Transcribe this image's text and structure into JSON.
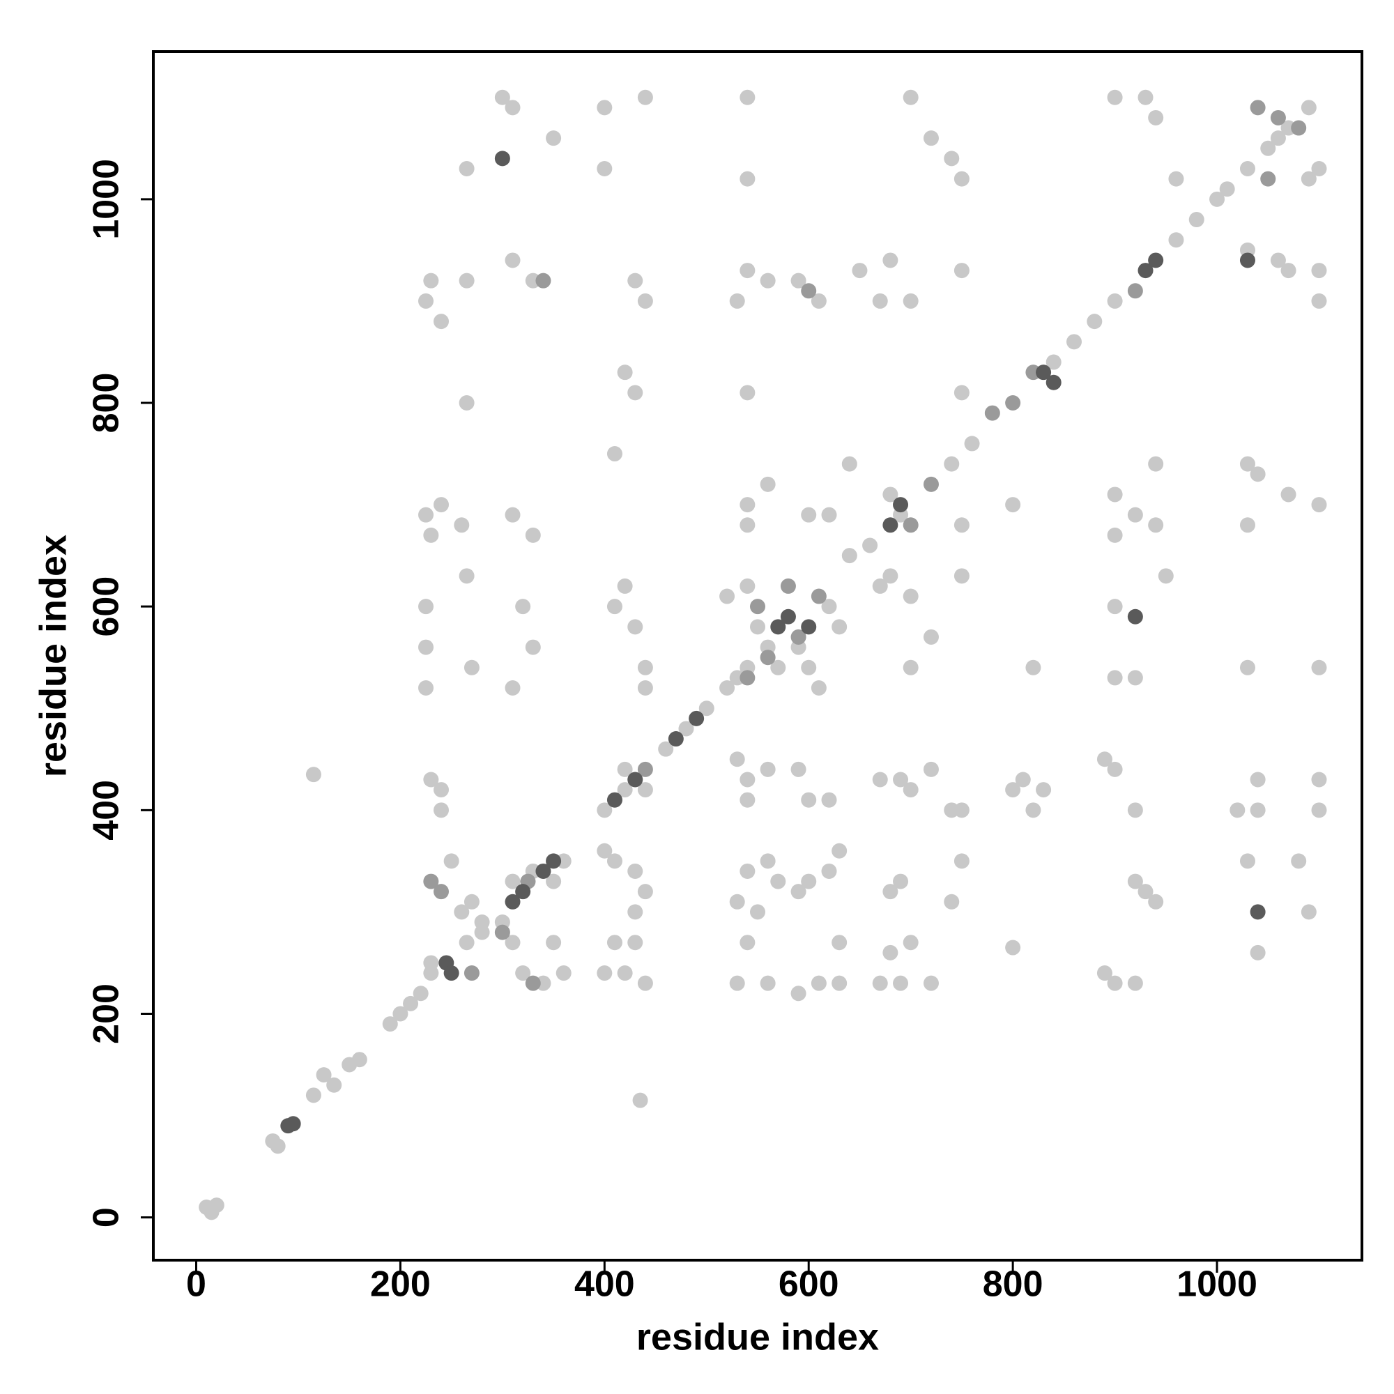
{
  "chart_data": {
    "type": "scatter",
    "xlabel": "residue index",
    "ylabel": "residue index",
    "xlim": [
      -42,
      1142
    ],
    "ylim": [
      -42,
      1145
    ],
    "xticks": [
      0,
      200,
      400,
      600,
      800,
      1000
    ],
    "yticks": [
      0,
      200,
      400,
      600,
      800,
      1000
    ],
    "series": [
      {
        "color": "#c8c8c8",
        "x": [
          10,
          15,
          20,
          75,
          80,
          115,
          125,
          135,
          150,
          160,
          190,
          200,
          210,
          220,
          230,
          265,
          280,
          300,
          360,
          400,
          420,
          460,
          480,
          500,
          520,
          540,
          640,
          660,
          740,
          760,
          840,
          860,
          880,
          900,
          960,
          980,
          1000,
          1010,
          1030,
          1050,
          1070,
          1090,
          1100,
          1090,
          1060,
          225,
          230,
          240,
          260,
          225,
          225,
          225,
          270,
          265,
          230,
          240,
          240,
          225,
          230,
          240,
          265,
          265,
          310,
          300,
          350,
          310,
          330,
          310,
          330,
          320,
          330,
          310,
          420,
          410,
          430,
          440,
          440,
          420,
          440,
          410,
          420,
          430,
          440,
          430,
          400,
          400,
          440,
          540,
          540,
          540,
          530,
          560,
          590,
          610,
          540,
          540,
          560,
          540,
          600,
          620,
          640,
          650,
          680,
          670,
          700,
          680,
          690,
          700,
          720,
          740,
          750,
          750,
          750,
          720,
          700,
          680,
          670,
          700,
          750,
          750,
          800,
          820,
          900,
          900,
          900,
          900,
          920,
          920,
          940,
          950,
          940,
          900,
          930,
          940,
          960,
          1030,
          1060,
          1070,
          1100,
          1100,
          1030,
          1040,
          1070,
          1100,
          1030,
          1030,
          1100,
          1020,
          1040,
          1040,
          1100,
          1100,
          1080,
          1030,
          1090,
          1040,
          940,
          930,
          920,
          900,
          890,
          920,
          920,
          900,
          890,
          820,
          830,
          800,
          810,
          750,
          740,
          750,
          740,
          700,
          690,
          670,
          720,
          690,
          680,
          700,
          680,
          690,
          720,
          670,
          630,
          610,
          590,
          560,
          530,
          540,
          530,
          550,
          540,
          560,
          570,
          590,
          600,
          620,
          630,
          630,
          600,
          620,
          590,
          560,
          540,
          540,
          530,
          430,
          440,
          430,
          430,
          440,
          400,
          420,
          410,
          410,
          400,
          360,
          340,
          320,
          350,
          310,
          230,
          250,
          260,
          270,
          280,
          115,
          435,
          265,
          800,
          330,
          350,
          310,
          560,
          570,
          550,
          590,
          530,
          520,
          540,
          610,
          600,
          620,
          630
        ],
        "y": [
          10,
          5,
          12,
          75,
          70,
          120,
          140,
          130,
          150,
          155,
          190,
          200,
          210,
          220,
          240,
          270,
          280,
          290,
          350,
          400,
          420,
          460,
          480,
          500,
          520,
          540,
          650,
          660,
          740,
          760,
          840,
          860,
          880,
          900,
          960,
          980,
          1000,
          1010,
          1030,
          1050,
          1070,
          1090,
          1030,
          1020,
          1060,
          690,
          670,
          700,
          680,
          600,
          560,
          520,
          540,
          630,
          430,
          400,
          420,
          900,
          920,
          880,
          920,
          1030,
          1090,
          1100,
          1060,
          940,
          920,
          690,
          670,
          600,
          560,
          520,
          620,
          600,
          580,
          540,
          520,
          440,
          420,
          750,
          830,
          810,
          900,
          920,
          1030,
          1090,
          1100,
          1100,
          1020,
          930,
          900,
          920,
          920,
          900,
          810,
          700,
          720,
          680,
          690,
          690,
          740,
          930,
          940,
          900,
          900,
          710,
          690,
          1100,
          1060,
          1040,
          1020,
          930,
          810,
          570,
          540,
          630,
          620,
          610,
          630,
          680,
          700,
          540,
          710,
          670,
          600,
          530,
          530,
          690,
          680,
          630,
          740,
          1100,
          1100,
          1080,
          1020,
          950,
          940,
          930,
          900,
          930,
          740,
          730,
          710,
          700,
          680,
          540,
          540,
          400,
          400,
          430,
          430,
          400,
          350,
          350,
          300,
          260,
          310,
          320,
          230,
          230,
          240,
          330,
          400,
          440,
          450,
          400,
          420,
          420,
          430,
          400,
          400,
          350,
          310,
          420,
          430,
          430,
          440,
          330,
          320,
          270,
          260,
          230,
          230,
          230,
          230,
          230,
          220,
          230,
          230,
          270,
          310,
          300,
          340,
          350,
          330,
          320,
          330,
          340,
          360,
          270,
          410,
          410,
          440,
          440,
          430,
          410,
          450,
          340,
          320,
          300,
          270,
          230,
          240,
          240,
          270,
          350,
          360,
          240,
          230,
          240,
          270,
          270,
          250,
          350,
          300,
          310,
          290,
          435,
          115,
          800,
          265,
          340,
          330,
          330,
          560,
          540,
          580,
          560,
          530,
          610,
          620,
          520,
          540,
          600,
          580
        ]
      },
      {
        "color": "#9a9a9a",
        "x": [
          230,
          240,
          270,
          330,
          300,
          560,
          540,
          610,
          580,
          700,
          720,
          780,
          800,
          820,
          920,
          1060,
          1080,
          1050,
          600,
          340,
          440,
          550,
          590,
          1040,
          325
        ],
        "y": [
          330,
          320,
          240,
          230,
          280,
          550,
          530,
          610,
          620,
          680,
          720,
          790,
          800,
          830,
          910,
          1080,
          1070,
          1020,
          910,
          920,
          440,
          600,
          570,
          1090,
          330
        ]
      },
      {
        "color": "#5a5a5a",
        "x": [
          300,
          90,
          95,
          320,
          340,
          310,
          350,
          470,
          490,
          580,
          570,
          600,
          680,
          690,
          830,
          840,
          930,
          940,
          1040,
          1030,
          920,
          245,
          250,
          410,
          430
        ],
        "y": [
          1040,
          90,
          92,
          320,
          340,
          310,
          350,
          470,
          490,
          590,
          580,
          580,
          680,
          700,
          830,
          820,
          930,
          940,
          300,
          940,
          590,
          250,
          240,
          410,
          430
        ]
      }
    ]
  }
}
